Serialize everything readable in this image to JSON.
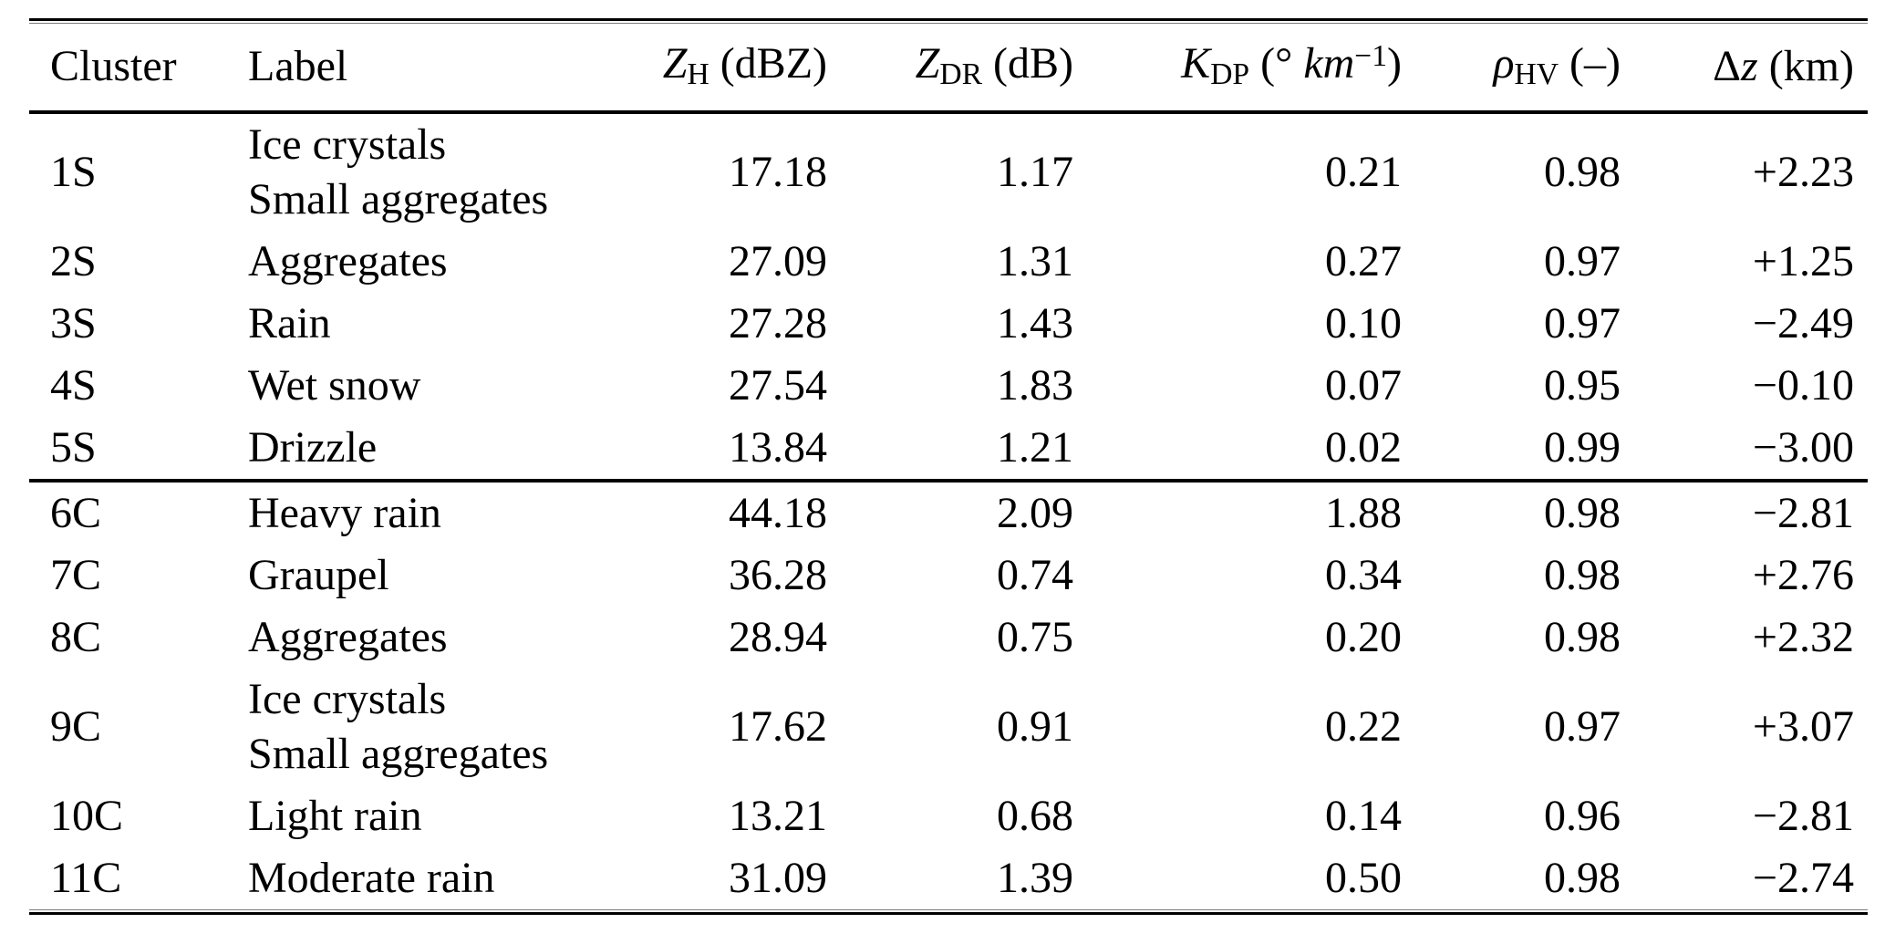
{
  "page": {
    "background": "#ffffff",
    "text_color": "#000000",
    "rule_color": "#000000"
  },
  "table": {
    "columns": [
      {
        "key": "cluster",
        "align": "left",
        "parts": [
          {
            "t": "Cluster"
          }
        ]
      },
      {
        "key": "label",
        "align": "left",
        "parts": [
          {
            "t": "Label"
          }
        ]
      },
      {
        "key": "zh",
        "align": "right",
        "parts": [
          {
            "t": "Z",
            "s": "it"
          },
          {
            "t": "H",
            "s": "sub"
          },
          {
            "t": " (dBZ)"
          }
        ]
      },
      {
        "key": "zdr",
        "align": "right",
        "parts": [
          {
            "t": "Z",
            "s": "it"
          },
          {
            "t": "DR",
            "s": "sub"
          },
          {
            "t": " (dB)"
          }
        ]
      },
      {
        "key": "kdp",
        "align": "right",
        "parts": [
          {
            "t": "K",
            "s": "it"
          },
          {
            "t": "DP",
            "s": "sub"
          },
          {
            "t": " (° "
          },
          {
            "t": "km",
            "s": "it"
          },
          {
            "t": "−1",
            "s": "sup"
          },
          {
            "t": ")"
          }
        ]
      },
      {
        "key": "rhohv",
        "align": "right",
        "parts": [
          {
            "t": "ρ",
            "s": "it"
          },
          {
            "t": "HV",
            "s": "sub"
          },
          {
            "t": " (–)"
          }
        ]
      },
      {
        "key": "dz",
        "align": "right",
        "parts": [
          {
            "t": "Δ"
          },
          {
            "t": "z",
            "s": "it"
          },
          {
            "t": " (km)"
          }
        ]
      }
    ],
    "sections": [
      {
        "name": "S",
        "rows": [
          {
            "cluster": "1S",
            "label_lines": [
              "Ice crystals",
              "Small aggregates"
            ],
            "zh": "17.18",
            "zdr": "1.17",
            "kdp": "0.21",
            "rhohv": "0.98",
            "dz": "+2.23"
          },
          {
            "cluster": "2S",
            "label_lines": [
              "Aggregates"
            ],
            "zh": "27.09",
            "zdr": "1.31",
            "kdp": "0.27",
            "rhohv": "0.97",
            "dz": "+1.25"
          },
          {
            "cluster": "3S",
            "label_lines": [
              "Rain"
            ],
            "zh": "27.28",
            "zdr": "1.43",
            "kdp": "0.10",
            "rhohv": "0.97",
            "dz": "−2.49"
          },
          {
            "cluster": "4S",
            "label_lines": [
              "Wet snow"
            ],
            "zh": "27.54",
            "zdr": "1.83",
            "kdp": "0.07",
            "rhohv": "0.95",
            "dz": "−0.10"
          },
          {
            "cluster": "5S",
            "label_lines": [
              "Drizzle"
            ],
            "zh": "13.84",
            "zdr": "1.21",
            "kdp": "0.02",
            "rhohv": "0.99",
            "dz": "−3.00"
          }
        ]
      },
      {
        "name": "C",
        "rows": [
          {
            "cluster": "6C",
            "label_lines": [
              "Heavy rain"
            ],
            "zh": "44.18",
            "zdr": "2.09",
            "kdp": "1.88",
            "rhohv": "0.98",
            "dz": "−2.81"
          },
          {
            "cluster": "7C",
            "label_lines": [
              "Graupel"
            ],
            "zh": "36.28",
            "zdr": "0.74",
            "kdp": "0.34",
            "rhohv": "0.98",
            "dz": "+2.76"
          },
          {
            "cluster": "8C",
            "label_lines": [
              "Aggregates"
            ],
            "zh": "28.94",
            "zdr": "0.75",
            "kdp": "0.20",
            "rhohv": "0.98",
            "dz": "+2.32"
          },
          {
            "cluster": "9C",
            "label_lines": [
              "Ice crystals",
              "Small aggregates"
            ],
            "zh": "17.62",
            "zdr": "0.91",
            "kdp": "0.22",
            "rhohov_typo_guard": null,
            "rhohv": "0.97",
            "dz": "+3.07"
          },
          {
            "cluster": "10C",
            "label_lines": [
              "Light rain"
            ],
            "zh": "13.21",
            "zdr": "0.68",
            "kdp": "0.14",
            "rhohv": "0.96",
            "dz": "−2.81"
          },
          {
            "cluster": "11C",
            "label_lines": [
              "Moderate rain"
            ],
            "zh": "31.09",
            "zdr": "1.39",
            "kdp": "0.50",
            "rhohv": "0.98",
            "dz": "−2.74"
          }
        ]
      }
    ]
  }
}
